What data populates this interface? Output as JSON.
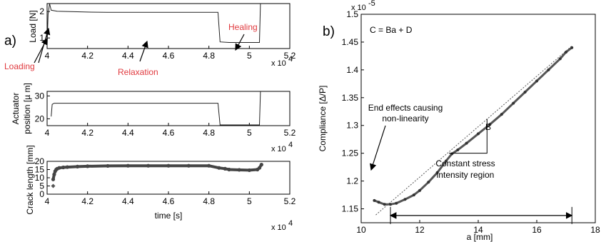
{
  "panel_labels": {
    "a": "a)",
    "b": "b)"
  },
  "chart_data": [
    {
      "type": "line",
      "panel": "a-top",
      "ylabel": "Load [N]",
      "xlim": [
        4.0,
        5.2
      ],
      "ylim": [
        0.6,
        2.3
      ],
      "x_ticks": [
        "4",
        "4.2",
        "4.4",
        "4.6",
        "4.8",
        "5",
        "5.2"
      ],
      "y_ticks": [
        "1",
        "2"
      ],
      "x_exponent": "x 10",
      "x_exponent_power": "4",
      "series": [
        {
          "x": [
            4.0,
            4.005,
            4.012,
            4.02,
            4.05,
            4.1,
            4.2,
            4.3,
            4.4,
            4.5,
            4.6,
            4.7,
            4.8,
            4.845,
            4.855,
            4.9,
            5.0,
            5.05,
            5.055
          ],
          "y": [
            0.7,
            1.9,
            2.3,
            2.05,
            2.01,
            2.0,
            1.98,
            1.97,
            1.97,
            1.97,
            1.97,
            1.97,
            1.97,
            1.97,
            0.85,
            0.83,
            0.83,
            0.83,
            2.35
          ]
        }
      ],
      "annotations": [
        {
          "text": "Loading",
          "color": "#e0393e"
        },
        {
          "text": "Relaxation",
          "color": "#e0393e"
        },
        {
          "text": "Healing",
          "color": "#e0393e"
        }
      ]
    },
    {
      "type": "line",
      "panel": "a-middle",
      "ylabel_lines": [
        "Actuator",
        "position [µ m]"
      ],
      "xlim": [
        4.0,
        5.2
      ],
      "ylim": [
        17,
        32
      ],
      "x_ticks": [
        "4",
        "4.2",
        "4.4",
        "4.6",
        "4.8",
        "5",
        "5.2"
      ],
      "y_ticks": [
        "20",
        "30"
      ],
      "x_exponent": "x 10",
      "x_exponent_power": "4",
      "series": [
        {
          "x": [
            4.02,
            4.025,
            4.035,
            4.1,
            4.3,
            4.5,
            4.7,
            4.845,
            4.855,
            4.9,
            5.0,
            5.05,
            5.055
          ],
          "y": [
            21,
            26.3,
            26.8,
            26.8,
            26.8,
            26.8,
            26.8,
            26.8,
            17.3,
            17.3,
            17.3,
            17.3,
            32
          ]
        }
      ]
    },
    {
      "type": "scatter",
      "panel": "a-bottom",
      "ylabel": "Crack length [mm]",
      "xlabel": "time [s]",
      "xlim": [
        4.0,
        5.2
      ],
      "ylim": [
        0,
        20
      ],
      "x_ticks": [
        "4",
        "4.2",
        "4.4",
        "4.6",
        "4.8",
        "5",
        "5.2"
      ],
      "y_ticks": [
        "0",
        "5",
        "10",
        "15",
        "20"
      ],
      "x_exponent": "x 10",
      "x_exponent_power": "4",
      "series": [
        {
          "x": [
            4.03,
            4.035,
            4.04,
            4.045,
            4.05,
            4.06,
            4.08,
            4.1,
            4.15,
            4.2,
            4.3,
            4.4,
            4.5,
            4.6,
            4.7,
            4.8,
            4.85,
            4.88,
            4.9,
            4.95,
            5.0,
            5.04,
            5.05,
            5.06
          ],
          "y": [
            9,
            12,
            14,
            15,
            15.5,
            16,
            16.3,
            16.5,
            16.8,
            17,
            17.2,
            17.3,
            17.3,
            17.3,
            17.3,
            17.3,
            16,
            15.5,
            15,
            14.8,
            14.6,
            15,
            16,
            18
          ]
        },
        {
          "x": [
            4.03
          ],
          "y": [
            5
          ]
        }
      ]
    },
    {
      "type": "scatter",
      "panel": "b",
      "xlabel": "a [mm]",
      "ylabel": "Compliance [Δ/P]",
      "xlim": [
        10,
        18
      ],
      "ylim": [
        1.125,
        1.5
      ],
      "x_ticks": [
        "10",
        "12",
        "14",
        "16",
        "18"
      ],
      "y_ticks": [
        "1.15",
        "1.2",
        "1.25",
        "1.3",
        "1.35",
        "1.4",
        "1.45",
        "1.5"
      ],
      "y_exponent": "x 10",
      "y_exponent_power": "-5",
      "equation": "C = Ba + D",
      "fit_line": {
        "x": [
          10.5,
          17.2
        ],
        "y": [
          1.139,
          1.443
        ]
      },
      "slope_triangle_label": "B",
      "series": [
        {
          "x": [
            10.45,
            10.6,
            10.8,
            11.0,
            11.2,
            11.5,
            11.8,
            12.0,
            12.3,
            12.6,
            12.9,
            13.1,
            13.3,
            13.6,
            14.0,
            14.4,
            14.8,
            15.2,
            15.6,
            16.0,
            16.4,
            16.8,
            17.0,
            17.2
          ],
          "y": [
            1.165,
            1.162,
            1.158,
            1.158,
            1.16,
            1.167,
            1.175,
            1.183,
            1.198,
            1.215,
            1.236,
            1.249,
            1.256,
            1.268,
            1.285,
            1.302,
            1.32,
            1.34,
            1.36,
            1.38,
            1.4,
            1.42,
            1.432,
            1.44
          ]
        }
      ],
      "annotations": [
        {
          "text_lines": [
            "End effects causing",
            "non-linearity"
          ]
        },
        {
          "text_lines": [
            "Constant stress",
            "intensity region"
          ],
          "span_x": [
            11.0,
            17.2
          ]
        }
      ]
    }
  ]
}
